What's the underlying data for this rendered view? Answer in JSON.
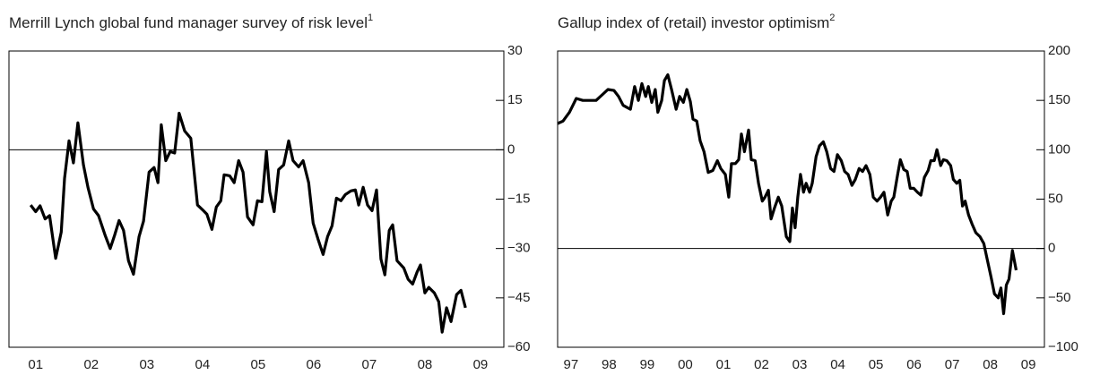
{
  "chart_data": [
    {
      "type": "line",
      "title": "Merrill Lynch global fund manager survey of risk level",
      "title_note": "1",
      "xlim": [
        2001.02,
        2009.92
      ],
      "ylim": [
        -60,
        30
      ],
      "xticks": [
        {
          "value": 2001.5,
          "label": "01"
        },
        {
          "value": 2002.5,
          "label": "02"
        },
        {
          "value": 2003.5,
          "label": "03"
        },
        {
          "value": 2004.5,
          "label": "04"
        },
        {
          "value": 2005.5,
          "label": "05"
        },
        {
          "value": 2006.5,
          "label": "06"
        },
        {
          "value": 2007.5,
          "label": "07"
        },
        {
          "value": 2008.5,
          "label": "08"
        },
        {
          "value": 2009.5,
          "label": "09"
        }
      ],
      "yticks": [
        30,
        15,
        0,
        {
          "value": -15,
          "label": "−15"
        },
        {
          "value": -30,
          "label": "−30"
        },
        {
          "value": -45,
          "label": "−45"
        },
        {
          "value": -60,
          "label": "−60"
        }
      ],
      "reference_line": 0,
      "series": [
        {
          "color": "#000000",
          "x": [
            2001.41,
            2001.5,
            2001.58,
            2001.67,
            2001.75,
            2001.86,
            2001.96,
            2002.02,
            2002.1,
            2002.18,
            2002.26,
            2002.36,
            2002.44,
            2002.54,
            2002.63,
            2002.75,
            2002.84,
            2002.92,
            2003.0,
            2003.08,
            2003.17,
            2003.26,
            2003.36,
            2003.44,
            2003.54,
            2003.63,
            2003.7,
            2003.76,
            2003.84,
            2003.92,
            2004.0,
            2004.08,
            2004.18,
            2004.29,
            2004.41,
            2004.5,
            2004.58,
            2004.67,
            2004.75,
            2004.83,
            2004.89,
            2004.99,
            2005.07,
            2005.15,
            2005.23,
            2005.31,
            2005.41,
            2005.49,
            2005.57,
            2005.65,
            2005.71,
            2005.79,
            2005.87,
            2005.96,
            2006.05,
            2006.13,
            2006.23,
            2006.31,
            2006.41,
            2006.49,
            2006.58,
            2006.67,
            2006.75,
            2006.83,
            2006.91,
            2006.99,
            2007.07,
            2007.17,
            2007.25,
            2007.31,
            2007.39,
            2007.47,
            2007.55,
            2007.63,
            2007.71,
            2007.78,
            2007.86,
            2007.92,
            2008.0,
            2008.12,
            2008.2,
            2008.28,
            2008.36,
            2008.42,
            2008.5,
            2008.57,
            2008.67,
            2008.75,
            2008.81,
            2008.89,
            2008.97,
            2009.07,
            2009.15,
            2009.23
          ],
          "values": [
            -16.8,
            -18.8,
            -17,
            -21,
            -20,
            -33,
            -25,
            -8.7,
            2.7,
            -4,
            8.2,
            -4.6,
            -11.4,
            -18,
            -20,
            -26,
            -30,
            -26,
            -21.5,
            -24.5,
            -33.7,
            -37.8,
            -26.4,
            -21.7,
            -6.8,
            -5.4,
            -10,
            7.6,
            -3.3,
            -0.5,
            -1,
            11.1,
            5.7,
            3.5,
            -16.8,
            -18.2,
            -19.6,
            -24.2,
            -17.4,
            -15.5,
            -7.6,
            -7.9,
            -10,
            -3.3,
            -6.8,
            -20.4,
            -22.8,
            -15.5,
            -15.8,
            -0.5,
            -12.8,
            -18.8,
            -6,
            -4.6,
            2.7,
            -3.3,
            -5.2,
            -3.3,
            -10,
            -22.3,
            -27.2,
            -31.8,
            -26.4,
            -23.1,
            -14.7,
            -15.5,
            -13.6,
            -12.5,
            -12.2,
            -16.8,
            -11.4,
            -16.8,
            -18.5,
            -12.2,
            -33.2,
            -38,
            -24.5,
            -22.8,
            -33.7,
            -35.9,
            -39.4,
            -40.8,
            -37.2,
            -35,
            -43.5,
            -41.8,
            -43.5,
            -46.2,
            -55.4,
            -48,
            -52.2,
            -44,
            -42.7,
            -48
          ]
        }
      ]
    },
    {
      "type": "line",
      "title": "Gallup index of (retail) investor optimism",
      "title_note": "2",
      "xlim": [
        1997.15,
        2009.92
      ],
      "ylim": [
        -100,
        200
      ],
      "xticks": [
        {
          "value": 1997.5,
          "label": "97"
        },
        {
          "value": 1998.5,
          "label": "98"
        },
        {
          "value": 1999.5,
          "label": "99"
        },
        {
          "value": 2000.5,
          "label": "00"
        },
        {
          "value": 2001.5,
          "label": "01"
        },
        {
          "value": 2002.5,
          "label": "02"
        },
        {
          "value": 2003.5,
          "label": "03"
        },
        {
          "value": 2004.5,
          "label": "04"
        },
        {
          "value": 2005.5,
          "label": "05"
        },
        {
          "value": 2006.5,
          "label": "06"
        },
        {
          "value": 2007.5,
          "label": "07"
        },
        {
          "value": 2008.5,
          "label": "08"
        },
        {
          "value": 2009.5,
          "label": "09"
        }
      ],
      "yticks": [
        200,
        150,
        100,
        50,
        0,
        {
          "value": -50,
          "label": "−50"
        },
        {
          "value": -100,
          "label": "−100"
        }
      ],
      "reference_line": 0,
      "series": [
        {
          "color": "#000000",
          "x": [
            1997.15,
            1997.29,
            1997.46,
            1997.64,
            1997.81,
            1997.97,
            1998.16,
            1998.33,
            1998.47,
            1998.63,
            1998.75,
            1998.87,
            1999.06,
            1999.17,
            1999.27,
            1999.36,
            1999.46,
            1999.53,
            1999.62,
            1999.71,
            1999.78,
            1999.88,
            1999.95,
            2000.04,
            2000.14,
            2000.26,
            2000.35,
            2000.45,
            2000.54,
            2000.63,
            2000.7,
            2000.8,
            2000.89,
            2000.99,
            2001.1,
            2001.22,
            2001.34,
            2001.43,
            2001.55,
            2001.64,
            2001.71,
            2001.81,
            2001.9,
            2001.97,
            2002.05,
            2002.16,
            2002.23,
            2002.33,
            2002.42,
            2002.52,
            2002.59,
            2002.68,
            2002.75,
            2002.84,
            2002.94,
            2003.03,
            2003.15,
            2003.24,
            2003.31,
            2003.38,
            2003.45,
            2003.52,
            2003.6,
            2003.67,
            2003.76,
            2003.83,
            2003.93,
            2004.02,
            2004.12,
            2004.21,
            2004.31,
            2004.4,
            2004.49,
            2004.59,
            2004.68,
            2004.77,
            2004.87,
            2004.96,
            2005.06,
            2005.15,
            2005.24,
            2005.34,
            2005.43,
            2005.53,
            2005.62,
            2005.71,
            2005.81,
            2005.9,
            2005.97,
            2006.07,
            2006.14,
            2006.23,
            2006.32,
            2006.4,
            2006.49,
            2006.59,
            2006.68,
            2006.77,
            2006.87,
            2006.94,
            2007.03,
            2007.1,
            2007.2,
            2007.27,
            2007.36,
            2007.46,
            2007.53,
            2007.62,
            2007.7,
            2007.77,
            2007.84,
            2007.93,
            2008.02,
            2008.12,
            2008.23,
            2008.33,
            2008.42,
            2008.52,
            2008.61,
            2008.71,
            2008.78,
            2008.85,
            2008.92,
            2008.99,
            2009.08,
            2009.18
          ],
          "values": [
            126.6,
            129,
            138,
            152,
            150,
            150,
            150,
            156,
            161,
            160,
            154,
            145,
            141,
            164,
            150,
            167,
            154,
            164,
            148,
            161,
            138,
            150,
            170,
            176,
            161,
            141,
            154,
            148,
            161,
            149,
            131,
            129,
            109,
            98,
            77,
            79,
            89,
            81,
            75,
            52,
            86,
            86,
            90,
            116,
            98,
            120,
            90,
            89,
            66,
            48,
            52,
            59,
            30,
            41,
            52,
            43,
            12,
            7,
            41,
            21,
            52,
            75,
            57,
            66,
            57,
            66,
            93,
            104,
            108,
            98,
            81,
            78,
            95,
            89,
            78,
            75,
            64,
            70,
            81,
            78,
            84,
            75,
            52,
            48,
            52,
            57,
            34,
            48,
            52,
            75,
            90,
            80,
            78,
            61,
            61,
            57,
            54,
            72,
            79,
            89,
            89,
            100,
            84,
            90,
            89,
            84,
            70,
            66,
            69,
            43,
            48,
            34,
            25,
            16,
            12,
            5,
            -11,
            -29,
            -46,
            -50,
            -40,
            -66,
            -37,
            -31,
            -2,
            -22
          ]
        }
      ]
    }
  ]
}
